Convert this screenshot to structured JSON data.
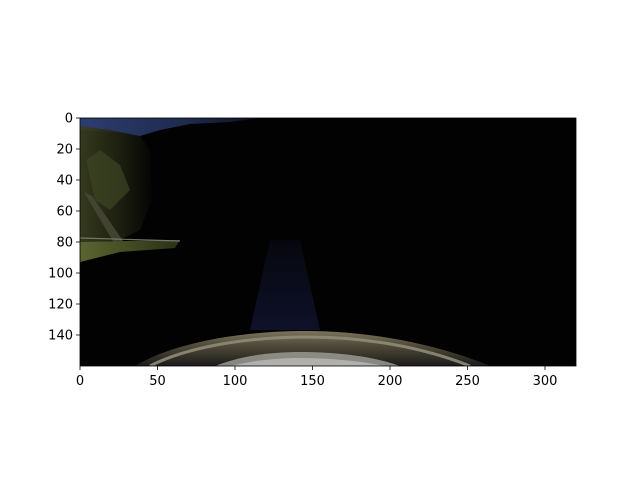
{
  "image": {
    "x_ticks": [
      "0",
      "50",
      "100",
      "150",
      "200",
      "250",
      "300"
    ],
    "y_ticks": [
      "0",
      "20",
      "40",
      "60",
      "80",
      "100",
      "120",
      "140"
    ],
    "x_range": [
      0,
      320
    ],
    "y_range": [
      0,
      160
    ],
    "colors": {
      "background": "#ffffff",
      "scene_dark": "#020202",
      "sky": "#2a3a66",
      "grass": "#4f5a2a",
      "hood": "#6d6a55",
      "hood_highlight": "#a9a79b"
    }
  }
}
